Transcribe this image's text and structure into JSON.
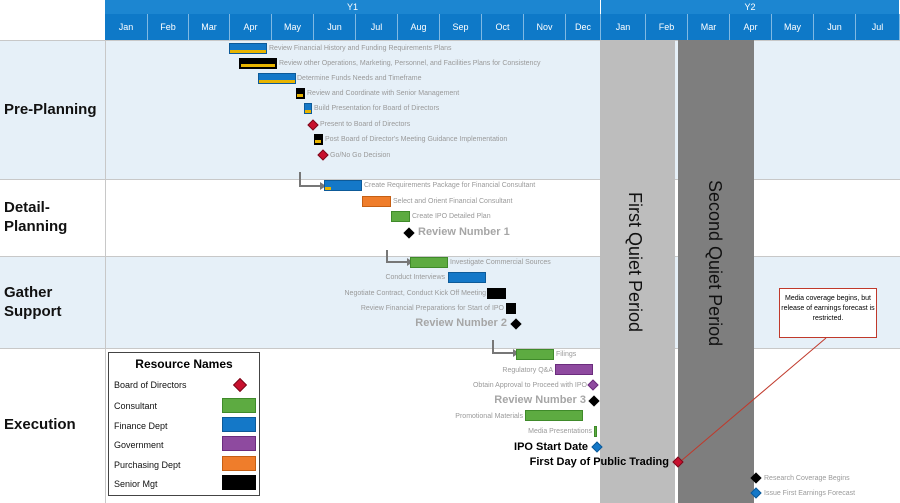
{
  "timeline": {
    "years": [
      "Y1",
      "Y2"
    ],
    "months": [
      "Jan",
      "Feb",
      "Mar",
      "Apr",
      "May",
      "Jun",
      "Jul",
      "Aug",
      "Sep",
      "Oct",
      "Nov",
      "Dec",
      "Jan",
      "Feb",
      "Mar",
      "Apr",
      "May",
      "Jun",
      "Jul"
    ]
  },
  "sections": [
    "Pre-Planning",
    "Detail-\nPlanning",
    "Gather\nSupport",
    "Execution"
  ],
  "tasks": {
    "t1": "Review Financial History and Funding Requirements Plans",
    "t2": "Review other Operations, Marketing, Personnel, and Facilities Plans for Consistency",
    "t3": "Determine Funds Needs and Timeframe",
    "t4": "Review and Coordinate with Senior Management",
    "t5": "Build Presentation for Board of Directors",
    "t6": "Present to Board of Directors",
    "t7": "Post Board of Director's Meeting Guidance Implementation",
    "t8": "Go/No Go Decision",
    "t9": "Create Requirements Package for Financial Consultant",
    "t10": "Select and Orient Financial Consultant",
    "t11": "Create IPO Detailed Plan",
    "t12": "Review Number 1",
    "t13": "Investigate Commercial Sources",
    "t14": "Conduct Interviews",
    "t15": "Negotiate Contract, Conduct Kick Off Meeting",
    "t16": "Review Financial Preparations for Start of IPO",
    "t17": "Review Number 2",
    "t18": "Filings",
    "t19": "Regulatory Q&A",
    "t20": "Obtain Approval to Proceed with IPO",
    "t21": "Review Number 3",
    "t22": "Promotional Materials",
    "t23": "Media Presentations",
    "t24": "IPO Start Date",
    "t25": "First Day of Public Trading",
    "t26": "Research Coverage Begins",
    "t27": "Issue First Earnings Forecast"
  },
  "quiet_periods": [
    "First Quiet Period",
    "Second Quiet Period"
  ],
  "callout": "Media coverage begins, but release of earnings forecast is restricted.",
  "legend": {
    "title": "Resource Names",
    "items": [
      "Board of Directors",
      "Consultant",
      "Finance Dept",
      "Government",
      "Purchasing Dept",
      "Senior Mgt"
    ]
  },
  "colors": {
    "finance": "#1478c8",
    "consultant": "#5dab41",
    "government": "#8e4a9f",
    "purchasing": "#ef7d2b",
    "senior_mgt": "#000000",
    "board": "#c8102e",
    "header": "#0e79c8"
  }
}
